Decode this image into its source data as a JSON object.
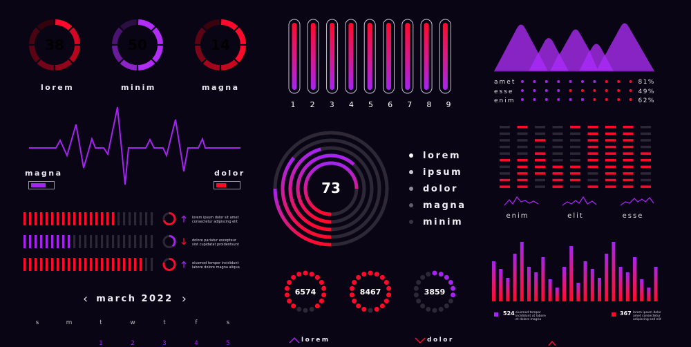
{
  "colors": {
    "background": "#0a0515",
    "red": "#ff0a2a",
    "purple": "#a524f0",
    "gray": "#2e2836",
    "text": "#f0eef5"
  },
  "gauges": [
    {
      "value": "38",
      "label": "lorem",
      "color": "red"
    },
    {
      "value": "50",
      "label": "minim",
      "color": "purple"
    },
    {
      "value": "14",
      "label": "magna",
      "color": "red"
    }
  ],
  "ecg": {
    "left_label": "magna",
    "right_label": "dolor",
    "left_fill_pct": 60,
    "right_fill_pct": 40
  },
  "progress_rows": [
    {
      "filled": 17,
      "total": 24,
      "color": "red",
      "ring_pct": 70,
      "arrow": "up",
      "text1": "lorem ipsum dolor sit amet",
      "text2": "consectetur adipiscing elit"
    },
    {
      "filled": 9,
      "total": 24,
      "color": "purple",
      "ring_pct": 40,
      "arrow": "down",
      "text1": "dolore pariatur excepteur",
      "text2": "sint cupidatat proidentsunt"
    },
    {
      "filled": 22,
      "total": 24,
      "color": "red",
      "ring_pct": 80,
      "arrow": "up",
      "text1": "eiusmod tempor incididunt",
      "text2": "labore dolore magna aliqua"
    }
  ],
  "calendar": {
    "title": "march 2022",
    "prev": "‹",
    "next": "›",
    "weekdays": [
      "s",
      "m",
      "t",
      "w",
      "t",
      "f",
      "s"
    ],
    "first_row": [
      "",
      "",
      "1",
      "2",
      "3",
      "4",
      "5"
    ]
  },
  "tubes": {
    "labels": [
      "1",
      "2",
      "3",
      "4",
      "5",
      "6",
      "7",
      "8",
      "9"
    ]
  },
  "rings": {
    "center_value": "73",
    "legend": [
      {
        "label": "lorem",
        "dot": "#ffffff"
      },
      {
        "label": "ipsum",
        "dot": "#c9c6cf"
      },
      {
        "label": "dolor",
        "dot": "#908c97"
      },
      {
        "label": "magna",
        "dot": "#625d69"
      },
      {
        "label": "minim",
        "dot": "#3a3541"
      }
    ]
  },
  "dot_gauges": [
    {
      "value": "6574",
      "active": 14,
      "total": 18,
      "color": "red"
    },
    {
      "value": "8467",
      "active": 16,
      "total": 18,
      "color": "red"
    },
    {
      "value": "3859",
      "active": 6,
      "total": 18,
      "color": "purple"
    }
  ],
  "trend_labels": [
    {
      "label": "lorem",
      "direction": "up",
      "color": "purple"
    },
    {
      "label": "dolor",
      "direction": "down",
      "color": "red"
    }
  ],
  "dot_rows": [
    {
      "label": "amet",
      "purple": 7,
      "red": 3,
      "pct": "81%"
    },
    {
      "label": "esse",
      "purple": 4,
      "red": 6,
      "pct": "49%"
    },
    {
      "label": "enim",
      "purple": 6,
      "red": 4,
      "pct": "62%"
    }
  ],
  "equalizer": {
    "grid": [
      [
        0,
        1,
        0,
        0,
        1,
        1,
        1,
        1,
        0
      ],
      [
        0,
        0,
        0,
        0,
        0,
        1,
        1,
        1,
        0
      ],
      [
        0,
        0,
        1,
        0,
        0,
        1,
        1,
        1,
        0
      ],
      [
        0,
        0,
        0,
        0,
        0,
        1,
        1,
        1,
        0
      ],
      [
        0,
        0,
        1,
        0,
        0,
        1,
        1,
        1,
        1
      ],
      [
        1,
        1,
        1,
        0,
        0,
        1,
        1,
        1,
        1
      ],
      [
        0,
        1,
        1,
        1,
        1,
        1,
        1,
        1,
        1
      ],
      [
        0,
        1,
        1,
        1,
        1,
        0,
        1,
        1,
        0
      ],
      [
        1,
        1,
        0,
        1,
        1,
        0,
        1,
        1,
        0
      ],
      [
        1,
        1,
        0,
        1,
        0,
        1,
        1,
        1,
        1
      ]
    ],
    "labels": [
      "enim",
      "elit",
      "esse"
    ]
  },
  "bar_chart": {
    "heights": [
      58,
      47,
      34,
      69,
      86,
      50,
      42,
      64,
      32,
      20,
      50,
      80,
      27,
      58,
      47,
      34,
      69,
      86,
      50,
      42,
      64,
      32,
      20,
      50
    ],
    "stats": [
      {
        "value": "524",
        "color": "purple",
        "text1": "eiusmod tempor",
        "text2": "incididunt ut labore",
        "text3": "et dolore magna"
      },
      {
        "value": "367",
        "color": "red",
        "text1": "lorem ipsum dolor",
        "text2": "amet consectetur",
        "text3": "adipiscing sed elit"
      }
    ]
  }
}
